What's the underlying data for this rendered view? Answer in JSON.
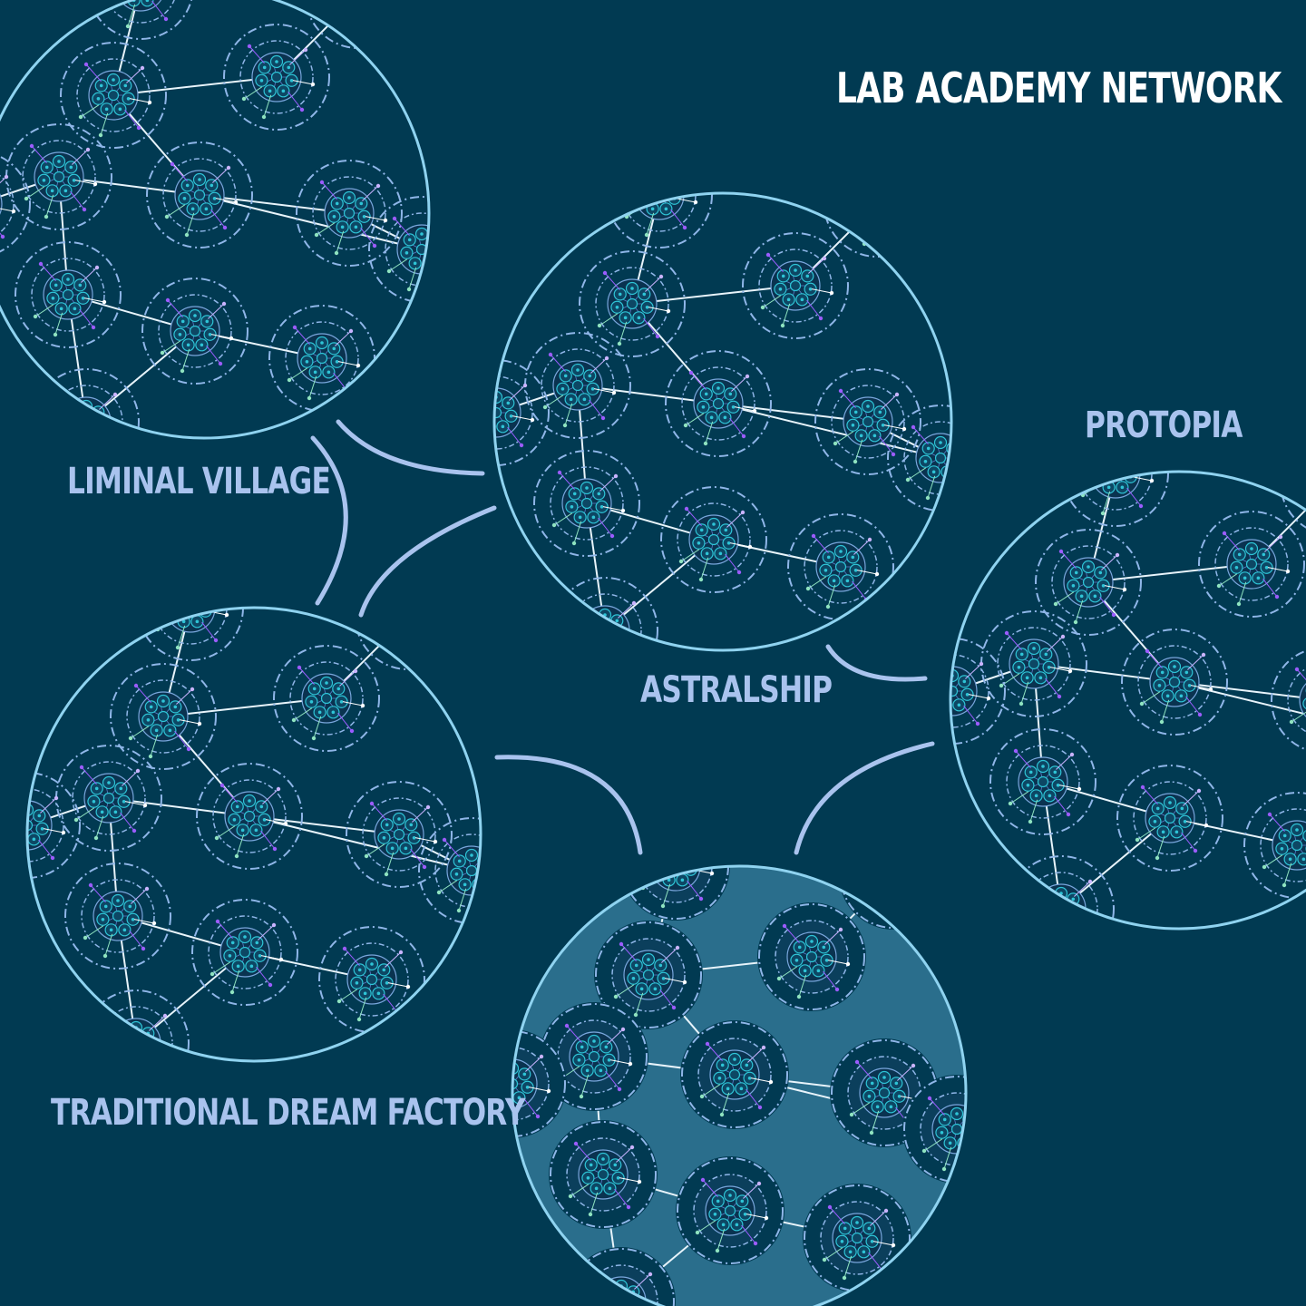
{
  "title": "LAB ACADEMY NETWORK",
  "clusters": [
    {
      "label": "LIMINAL VILLAGE",
      "highlighted": false
    },
    {
      "label": "ASTRALSHIP",
      "highlighted": false
    },
    {
      "label": "PROTOPIA",
      "highlighted": false
    },
    {
      "label": "TRADITIONAL DREAM FACTORY",
      "highlighted": false
    },
    {
      "label": "",
      "highlighted": true
    }
  ],
  "colors": {
    "background": "#013a52",
    "highlight_fill": "#2a6e8c",
    "title": "#ffffff",
    "label": "#a9c3ee",
    "cluster_outline": "#8fd3f0",
    "node_ring": "#8fb6e8",
    "link": "#e8f4fb",
    "connector": "#a9c3ee",
    "inner_node": "#2ec4d6",
    "spark": "#9b5cff"
  }
}
